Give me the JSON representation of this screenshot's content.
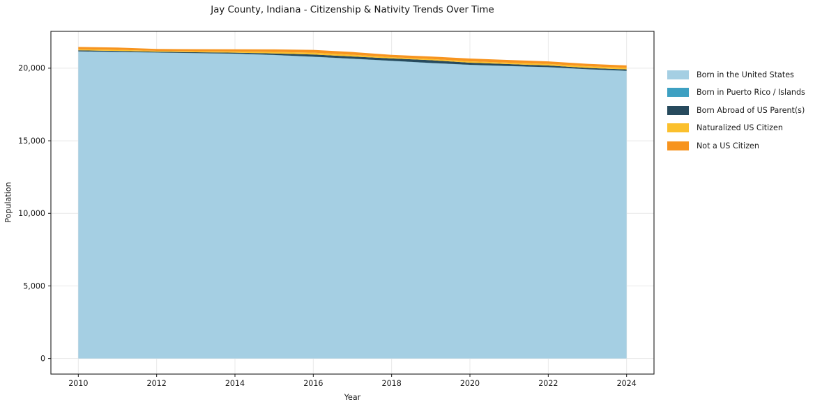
{
  "chart_data": {
    "type": "area",
    "stacked": true,
    "title": "Jay County, Indiana - Citizenship & Nativity Trends Over Time",
    "xlabel": "Year",
    "ylabel": "Population",
    "x": [
      2010,
      2011,
      2012,
      2013,
      2014,
      2015,
      2016,
      2017,
      2018,
      2019,
      2020,
      2021,
      2022,
      2023,
      2024
    ],
    "series": [
      {
        "name": "Born in the United States",
        "color": "#a5cfe3",
        "values": [
          21150,
          21110,
          21070,
          21030,
          20990,
          20900,
          20780,
          20640,
          20500,
          20350,
          20225,
          20140,
          20060,
          19920,
          19810
        ]
      },
      {
        "name": "Born in Puerto Rico / Islands",
        "color": "#3da0c2",
        "values": [
          10,
          10,
          10,
          10,
          10,
          15,
          15,
          15,
          10,
          10,
          10,
          10,
          10,
          10,
          10
        ]
      },
      {
        "name": "Born Abroad of US Parent(s)",
        "color": "#274a5d",
        "values": [
          70,
          70,
          55,
          60,
          70,
          100,
          145,
          150,
          165,
          190,
          145,
          130,
          115,
          90,
          95
        ]
      },
      {
        "name": "Naturalized US Citizen",
        "color": "#fbc02d",
        "values": [
          75,
          75,
          60,
          70,
          80,
          110,
          130,
          120,
          80,
          85,
          95,
          100,
          110,
          115,
          110
        ]
      },
      {
        "name": "Not a US Citizen",
        "color": "#f7941f",
        "values": [
          160,
          155,
          130,
          140,
          150,
          170,
          190,
          190,
          165,
          170,
          190,
          185,
          175,
          165,
          165
        ]
      }
    ],
    "xlim": [
      2009.3,
      2024.7
    ],
    "ylim": [
      -1073,
      22538
    ],
    "xticks": {
      "values": [
        2010,
        2012,
        2014,
        2016,
        2018,
        2020,
        2022,
        2024
      ],
      "labels": [
        "2010",
        "2012",
        "2014",
        "2016",
        "2018",
        "2020",
        "2022",
        "2024"
      ]
    },
    "yticks": {
      "values": [
        0,
        5000,
        10000,
        15000,
        20000
      ],
      "labels": [
        "0",
        "5,000",
        "10,000",
        "15,000",
        "20,000"
      ]
    },
    "grid": true,
    "legend_position": "right-outside"
  },
  "styles": {
    "background": "#ffffff",
    "grid_color": "#e8e8e8",
    "spine_color": "#1a1a1a",
    "tick_color": "#1a1a1a",
    "text_color": "#191919"
  }
}
